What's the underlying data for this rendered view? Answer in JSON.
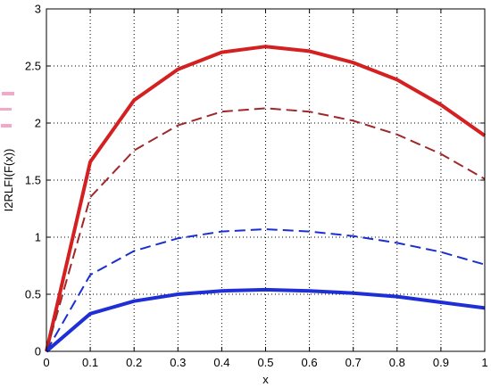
{
  "chart_data": {
    "type": "line",
    "title": "",
    "xlabel": "x",
    "ylabel": "I2RLFI(F(x))",
    "xlim": [
      0,
      1
    ],
    "ylim": [
      0,
      3
    ],
    "xticks": [
      0,
      0.1,
      0.2,
      0.3,
      0.4,
      0.5,
      0.6,
      0.7,
      0.8,
      0.9,
      1
    ],
    "yticks": [
      0,
      0.5,
      1,
      1.5,
      2,
      2.5,
      3
    ],
    "xtick_labels": [
      "0",
      "0.1",
      "0.2",
      "0.3",
      "0.4",
      "0.5",
      "0.6",
      "0.7",
      "0.8",
      "0.9",
      "1"
    ],
    "ytick_labels": [
      "0",
      "0.5",
      "1",
      "1.5",
      "2",
      "2.5",
      "3"
    ],
    "grid": true,
    "x": [
      0,
      0.1,
      0.2,
      0.3,
      0.4,
      0.5,
      0.6,
      0.7,
      0.8,
      0.9,
      1
    ],
    "series": [
      {
        "values": [
          0,
          1.66,
          2.2,
          2.47,
          2.62,
          2.67,
          2.63,
          2.53,
          2.38,
          2.16,
          1.89
        ],
        "color": "#d42020",
        "style": "solid",
        "weight": "thick"
      },
      {
        "values": [
          0,
          1.35,
          1.76,
          1.98,
          2.1,
          2.13,
          2.1,
          2.02,
          1.9,
          1.73,
          1.51
        ],
        "color": "#a0282a",
        "style": "dashed",
        "weight": "thin"
      },
      {
        "values": [
          0,
          0.67,
          0.88,
          0.99,
          1.05,
          1.07,
          1.05,
          1.01,
          0.95,
          0.87,
          0.76
        ],
        "color": "#1a2fd0",
        "style": "dashed",
        "weight": "thin"
      },
      {
        "values": [
          0,
          0.33,
          0.44,
          0.5,
          0.53,
          0.54,
          0.53,
          0.51,
          0.48,
          0.43,
          0.38
        ],
        "color": "#1f2fd8",
        "style": "solid",
        "weight": "thick"
      }
    ]
  }
}
